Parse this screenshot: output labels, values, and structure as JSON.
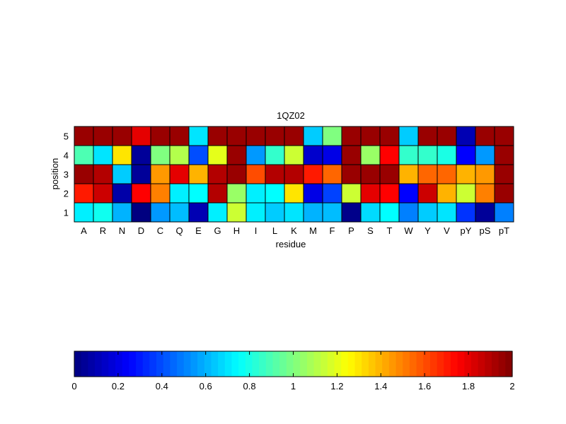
{
  "chart_data": [
    {
      "type": "heatmap",
      "title": "1QZ02",
      "xlabel": "residue",
      "ylabel": "position",
      "x_categories": [
        "A",
        "R",
        "N",
        "D",
        "C",
        "Q",
        "E",
        "G",
        "H",
        "I",
        "L",
        "K",
        "M",
        "F",
        "P",
        "S",
        "T",
        "W",
        "Y",
        "V",
        "pY",
        "pS",
        "pT"
      ],
      "y_categories": [
        "1",
        "2",
        "3",
        "4",
        "5"
      ],
      "clim": [
        0,
        2
      ],
      "colormap": "jet",
      "grid": true,
      "values": [
        [
          0.72,
          0.78,
          0.6,
          0.0,
          0.55,
          0.62,
          0.1,
          0.72,
          1.15,
          0.72,
          0.65,
          0.7,
          0.6,
          0.62,
          0.02,
          0.68,
          0.75,
          0.5,
          0.65,
          0.7,
          0.35,
          0.05,
          0.5
        ],
        [
          1.7,
          1.85,
          0.08,
          1.75,
          1.5,
          0.72,
          0.75,
          1.9,
          1.05,
          0.72,
          0.75,
          1.3,
          0.2,
          0.38,
          1.15,
          1.8,
          1.75,
          0.25,
          1.85,
          1.4,
          1.15,
          1.5,
          1.95
        ],
        [
          1.95,
          1.9,
          0.65,
          0.05,
          1.45,
          1.8,
          1.4,
          1.9,
          1.95,
          1.6,
          1.9,
          1.9,
          1.7,
          1.55,
          1.95,
          1.95,
          1.95,
          1.4,
          1.55,
          1.55,
          1.4,
          1.45,
          1.95
        ],
        [
          0.9,
          0.7,
          1.3,
          0.05,
          1.0,
          1.1,
          0.4,
          1.2,
          1.95,
          0.55,
          0.85,
          1.15,
          0.15,
          0.2,
          1.95,
          1.05,
          1.75,
          0.85,
          0.85,
          0.8,
          0.25,
          0.55,
          1.95
        ],
        [
          1.95,
          1.95,
          1.95,
          1.8,
          1.95,
          1.95,
          0.7,
          1.95,
          1.95,
          1.95,
          1.95,
          1.95,
          0.65,
          1.0,
          1.95,
          1.95,
          1.95,
          0.65,
          1.95,
          1.95,
          0.1,
          1.95,
          1.95
        ]
      ]
    },
    {
      "type": "colorbar",
      "ticks": [
        0,
        0.2,
        0.4,
        0.6,
        0.8,
        1,
        1.2,
        1.4,
        1.6,
        1.8,
        2
      ],
      "tick_labels": [
        "0",
        "0.2",
        "0.4",
        "0.6",
        "0.8",
        "1",
        "1.2",
        "1.4",
        "1.6",
        "1.8",
        "2"
      ],
      "range": [
        0,
        2
      ],
      "colormap": "jet",
      "levels": 64
    }
  ]
}
